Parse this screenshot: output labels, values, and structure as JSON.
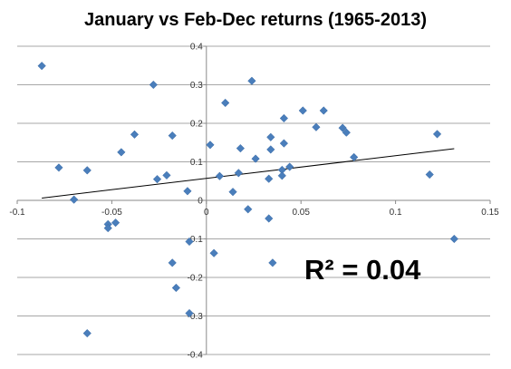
{
  "chart_data": {
    "type": "scatter",
    "title": "January vs Feb-Dec returns (1965-2013)",
    "annotation": "R² = 0.04",
    "xlim": [
      -0.1,
      0.15
    ],
    "ylim": [
      -0.4,
      0.4
    ],
    "x_ticks": [
      "-0.1",
      "-0.05",
      "0",
      "0.05",
      "0.1",
      "0.15"
    ],
    "y_ticks": [
      "0.4",
      "0.3",
      "0.2",
      "0.1",
      "0",
      "-0.1",
      "-0.2",
      "-0.3",
      "-0.4"
    ],
    "grid": "horizontal",
    "marker_color": "#4a7ebb",
    "trendline": {
      "type": "linear",
      "x": [
        -0.087,
        0.131
      ],
      "y": [
        0.006,
        0.134
      ]
    },
    "points": [
      {
        "x": -0.087,
        "y": 0.349
      },
      {
        "x": -0.078,
        "y": 0.085
      },
      {
        "x": -0.07,
        "y": 0.002
      },
      {
        "x": -0.063,
        "y": 0.078
      },
      {
        "x": -0.063,
        "y": -0.345
      },
      {
        "x": -0.052,
        "y": -0.062
      },
      {
        "x": -0.052,
        "y": -0.072
      },
      {
        "x": -0.048,
        "y": -0.058
      },
      {
        "x": -0.045,
        "y": 0.125
      },
      {
        "x": -0.038,
        "y": 0.171
      },
      {
        "x": -0.028,
        "y": 0.3
      },
      {
        "x": -0.026,
        "y": 0.055
      },
      {
        "x": -0.021,
        "y": 0.065
      },
      {
        "x": -0.018,
        "y": 0.168
      },
      {
        "x": -0.018,
        "y": -0.162
      },
      {
        "x": -0.016,
        "y": -0.227
      },
      {
        "x": -0.01,
        "y": 0.024
      },
      {
        "x": -0.009,
        "y": -0.293
      },
      {
        "x": -0.009,
        "y": -0.107
      },
      {
        "x": 0.002,
        "y": 0.144
      },
      {
        "x": 0.004,
        "y": -0.137
      },
      {
        "x": 0.007,
        "y": 0.063
      },
      {
        "x": 0.01,
        "y": 0.253
      },
      {
        "x": 0.014,
        "y": 0.022
      },
      {
        "x": 0.017,
        "y": 0.071
      },
      {
        "x": 0.018,
        "y": 0.135
      },
      {
        "x": 0.022,
        "y": -0.023
      },
      {
        "x": 0.024,
        "y": 0.31
      },
      {
        "x": 0.026,
        "y": 0.108
      },
      {
        "x": 0.033,
        "y": -0.047
      },
      {
        "x": 0.033,
        "y": 0.056
      },
      {
        "x": 0.034,
        "y": 0.164
      },
      {
        "x": 0.034,
        "y": 0.132
      },
      {
        "x": 0.035,
        "y": -0.162
      },
      {
        "x": 0.04,
        "y": 0.079
      },
      {
        "x": 0.04,
        "y": 0.064
      },
      {
        "x": 0.041,
        "y": 0.148
      },
      {
        "x": 0.041,
        "y": 0.213
      },
      {
        "x": 0.044,
        "y": 0.087
      },
      {
        "x": 0.051,
        "y": 0.233
      },
      {
        "x": 0.058,
        "y": 0.19
      },
      {
        "x": 0.062,
        "y": 0.233
      },
      {
        "x": 0.072,
        "y": 0.188
      },
      {
        "x": 0.074,
        "y": 0.176
      },
      {
        "x": 0.078,
        "y": 0.112
      },
      {
        "x": 0.118,
        "y": 0.067
      },
      {
        "x": 0.122,
        "y": 0.172
      },
      {
        "x": 0.131,
        "y": -0.1
      }
    ]
  }
}
